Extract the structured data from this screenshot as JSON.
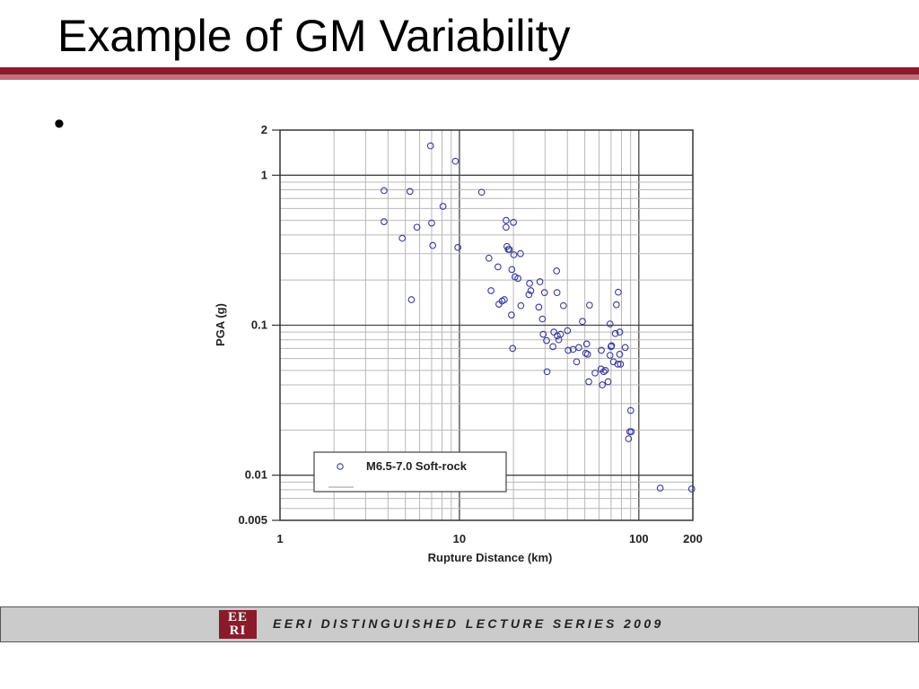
{
  "slide": {
    "title": "Example of GM Variability",
    "bullet": "•"
  },
  "footer": {
    "logo_top": "EE",
    "logo_bottom": "RI",
    "text": "EERI DISTINGUISHED LECTURE SERIES 2009"
  },
  "colors": {
    "title_rule": "#8b1a2a",
    "marker": "#3a3a9a",
    "footer_bg": "#cbcbcb"
  },
  "chart_data": {
    "type": "scatter",
    "xscale": "log",
    "yscale": "log",
    "xlim": [
      1,
      200
    ],
    "ylim": [
      0.005,
      2
    ],
    "xlabel": "Rupture Distance (km)",
    "ylabel": "PGA (g)",
    "xticks": [
      1,
      10,
      100,
      200
    ],
    "xtick_labels": [
      "1",
      "10",
      "100",
      "200"
    ],
    "yticks": [
      0.005,
      0.01,
      0.1,
      1,
      2
    ],
    "ytick_labels": [
      "0.005",
      "0.01",
      "0.1",
      "1",
      "2"
    ],
    "grid": true,
    "legend": {
      "position": "bottom-left",
      "entries": [
        "M6.5-7.0 Soft-rock"
      ]
    },
    "series": [
      {
        "name": "M6.5-7.0 Soft-rock",
        "marker": "open-circle",
        "x": [
          3.8,
          3.8,
          4.8,
          5.3,
          5.4,
          5.8,
          6.9,
          7.0,
          7.1,
          8.1,
          9.5,
          9.8,
          13.3,
          14.6,
          15.0,
          16.4,
          16.6,
          17.3,
          17.8,
          18.2,
          18.2,
          18.4,
          18.7,
          19.0,
          19.5,
          19.6,
          19.8,
          20.0,
          20.1,
          20.4,
          21.2,
          21.9,
          22.0,
          24.4,
          24.6,
          25.0,
          27.7,
          28.1,
          29.0,
          29.3,
          29.8,
          30.6,
          30.8,
          33.2,
          33.6,
          34.8,
          35.0,
          35.1,
          35.8,
          36.6,
          38.0,
          40.0,
          40.4,
          43.0,
          45.0,
          46.3,
          48.5,
          50.6,
          51.2,
          51.8,
          52.6,
          53.1,
          57.0,
          61.6,
          61.8,
          62.6,
          63.7,
          65.1,
          67.4,
          69.1,
          69.1,
          70.0,
          70.5,
          72.2,
          73.9,
          75.0,
          76.4,
          76.8,
          78.2,
          78.3,
          79.0,
          83.9,
          87.7,
          89.1,
          90.1,
          90.8,
          131.6,
          197.1
        ],
        "y": [
          0.49,
          0.79,
          0.38,
          0.78,
          0.148,
          0.45,
          1.57,
          0.48,
          0.34,
          0.62,
          1.24,
          0.33,
          0.77,
          0.28,
          0.17,
          0.245,
          0.138,
          0.145,
          0.148,
          0.5,
          0.45,
          0.335,
          0.32,
          0.32,
          0.117,
          0.235,
          0.07,
          0.485,
          0.295,
          0.21,
          0.205,
          0.3,
          0.135,
          0.16,
          0.19,
          0.17,
          0.132,
          0.195,
          0.11,
          0.087,
          0.165,
          0.079,
          0.049,
          0.072,
          0.09,
          0.23,
          0.165,
          0.085,
          0.08,
          0.087,
          0.135,
          0.092,
          0.068,
          0.069,
          0.057,
          0.071,
          0.106,
          0.065,
          0.075,
          0.064,
          0.042,
          0.136,
          0.048,
          0.051,
          0.068,
          0.04,
          0.049,
          0.05,
          0.042,
          0.063,
          0.102,
          0.072,
          0.073,
          0.057,
          0.088,
          0.137,
          0.055,
          0.166,
          0.064,
          0.09,
          0.055,
          0.071,
          0.0175,
          0.0195,
          0.027,
          0.0195,
          0.0082,
          0.0081
        ]
      }
    ]
  }
}
